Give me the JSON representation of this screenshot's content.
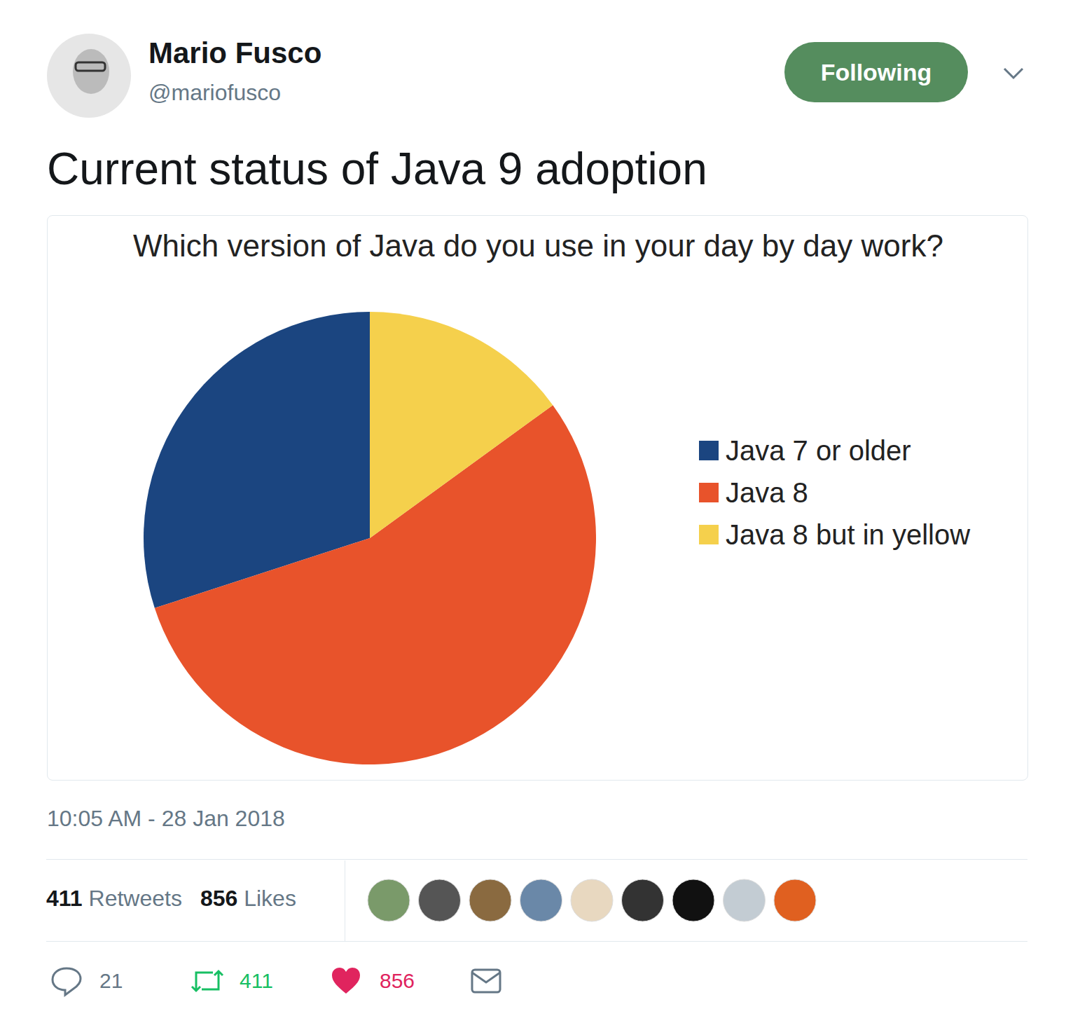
{
  "author": {
    "name": "Mario Fusco",
    "handle": "@mariofusco"
  },
  "button": "Following",
  "text": "Current status of Java 9 adoption",
  "chart_data": {
    "type": "pie",
    "title": "Which version of Java do you use in your day by day work?",
    "categories": [
      "Java 7 or older",
      "Java 8",
      "Java 8 but in yellow"
    ],
    "values": [
      30,
      55,
      15
    ],
    "colors": [
      "#1b4580",
      "#e8532b",
      "#f5d04c"
    ],
    "legend": "right"
  },
  "timestamp": "10:05 AM - 28 Jan 2018",
  "stats": {
    "retweets": {
      "count": 411,
      "label": "Retweets"
    },
    "likes": {
      "count": 856,
      "label": "Likes"
    }
  },
  "actions": {
    "replies": 21,
    "retweets": 411,
    "likes": 856
  }
}
